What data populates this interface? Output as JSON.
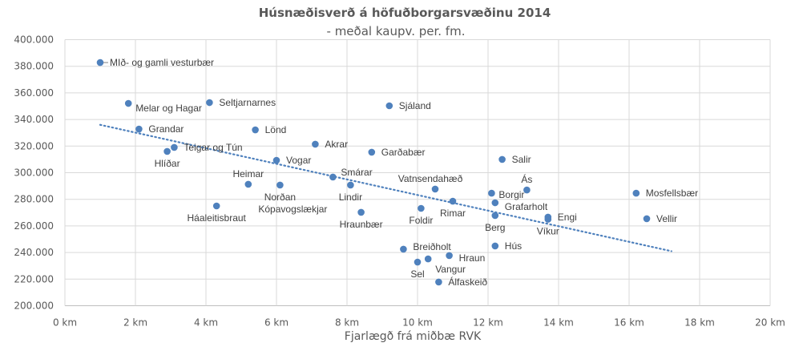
{
  "chart_data": {
    "type": "scatter",
    "title": "Húsnæðisverð á höfuðborgarsvæðinu 2014",
    "subtitle": "- meðal kaupv. per. fm.",
    "xlabel": "Fjarlægð frá miðbæ RVK",
    "ylabel": "",
    "xlim": [
      0,
      20
    ],
    "ylim": [
      200000,
      400000
    ],
    "x_ticks": [
      0,
      2,
      4,
      6,
      8,
      10,
      12,
      14,
      16,
      18,
      20
    ],
    "x_tick_labels": [
      "0 km",
      "2 km",
      "4 km",
      "6 km",
      "8 km",
      "10 km",
      "12 km",
      "14 km",
      "16 km",
      "18 km",
      "20 km"
    ],
    "y_ticks": [
      200000,
      220000,
      240000,
      260000,
      280000,
      300000,
      320000,
      340000,
      360000,
      380000,
      400000
    ],
    "y_tick_labels": [
      "200.000",
      "220.000",
      "240.000",
      "260.000",
      "280.000",
      "300.000",
      "320.000",
      "340.000",
      "360.000",
      "380.000",
      "400.000"
    ],
    "grid": true,
    "point_color": "#4f81bd",
    "trendline": {
      "type": "linear",
      "style": "dotted",
      "color": "#4f81bd",
      "x": [
        1.0,
        17.2
      ],
      "y": [
        336000,
        241000
      ]
    },
    "points": [
      {
        "label": "MIð- og gamli vesturbær",
        "x": 1.0,
        "y": 382800,
        "pos": "right"
      },
      {
        "label": "Melar og Hagar",
        "x": 1.8,
        "y": 352100,
        "pos": "right-below"
      },
      {
        "label": "Seltjarnarnes",
        "x": 4.1,
        "y": 352700,
        "pos": "right"
      },
      {
        "label": "Grandar",
        "x": 2.1,
        "y": 332800,
        "pos": "right"
      },
      {
        "label": "Lönd",
        "x": 5.4,
        "y": 332200,
        "pos": "right"
      },
      {
        "label": "Akrar",
        "x": 7.1,
        "y": 321400,
        "pos": "right"
      },
      {
        "label": "Teigar og Tún",
        "x": 3.1,
        "y": 319000,
        "pos": "right"
      },
      {
        "label": "Hlíðar",
        "x": 2.9,
        "y": 316000,
        "pos": "below"
      },
      {
        "label": "Vogar",
        "x": 6.0,
        "y": 309300,
        "pos": "right"
      },
      {
        "label": "Heimar",
        "x": 5.2,
        "y": 291300,
        "pos": "above"
      },
      {
        "label": "Norðan",
        "x": 6.1,
        "y": 290700,
        "pos": "below"
      },
      {
        "label": "Kópavogslækjar",
        "x": 6.1,
        "y": 290700,
        "pos": "below2"
      },
      {
        "label": "Háaleitisbraut",
        "x": 4.3,
        "y": 275000,
        "pos": "below"
      },
      {
        "label": "Sjáland",
        "x": 9.2,
        "y": 350300,
        "pos": "right"
      },
      {
        "label": "Garðabær",
        "x": 8.7,
        "y": 315400,
        "pos": "right"
      },
      {
        "label": "Smárar",
        "x": 7.6,
        "y": 296700,
        "pos": "right-above"
      },
      {
        "label": "Lindir",
        "x": 8.1,
        "y": 290700,
        "pos": "below"
      },
      {
        "label": "Hraunbær",
        "x": 8.4,
        "y": 270200,
        "pos": "below"
      },
      {
        "label": "Vatnsendahæð",
        "x": 10.5,
        "y": 287700,
        "pos": "above"
      },
      {
        "label": "Foldir",
        "x": 10.1,
        "y": 273200,
        "pos": "below"
      },
      {
        "label": "Rimar",
        "x": 11.0,
        "y": 278600,
        "pos": "below"
      },
      {
        "label": "Salir",
        "x": 12.4,
        "y": 310000,
        "pos": "right"
      },
      {
        "label": "Ás",
        "x": 13.1,
        "y": 287000,
        "pos": "above"
      },
      {
        "label": "Borgir",
        "x": 12.1,
        "y": 284600,
        "pos": "right-below"
      },
      {
        "label": "Grafarholt",
        "x": 12.2,
        "y": 277400,
        "pos": "right"
      },
      {
        "label": "Berg",
        "x": 12.2,
        "y": 267800,
        "pos": "below"
      },
      {
        "label": "Engi",
        "x": 13.7,
        "y": 266600,
        "pos": "right"
      },
      {
        "label": "Víkur",
        "x": 13.7,
        "y": 265000,
        "pos": "below"
      },
      {
        "label": "Hús",
        "x": 12.2,
        "y": 244900,
        "pos": "right"
      },
      {
        "label": "Breiðholt",
        "x": 9.6,
        "y": 242500,
        "pos": "right"
      },
      {
        "label": "Hraun",
        "x": 10.9,
        "y": 237700,
        "pos": "right"
      },
      {
        "label": "Vangur",
        "x": 10.3,
        "y": 235200,
        "pos": "right-below"
      },
      {
        "label": "Sel",
        "x": 10.0,
        "y": 232800,
        "pos": "below"
      },
      {
        "label": "Álfaskeið",
        "x": 10.6,
        "y": 217800,
        "pos": "right"
      },
      {
        "label": "Mosfellsbær",
        "x": 16.2,
        "y": 284600,
        "pos": "right"
      },
      {
        "label": "Vellir",
        "x": 16.5,
        "y": 265400,
        "pos": "right"
      }
    ]
  }
}
